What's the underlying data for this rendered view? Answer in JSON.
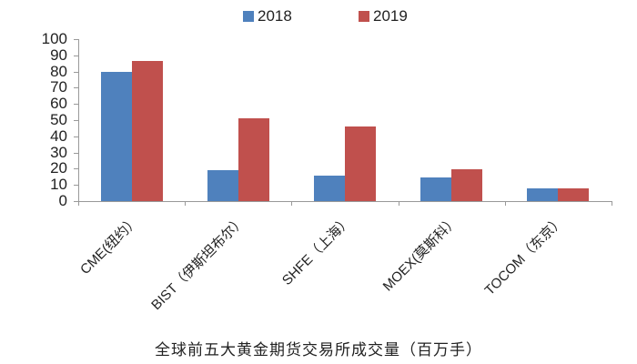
{
  "chart_data": {
    "type": "bar",
    "title": "全球前五大黄金期货交易所成交量（百万手）",
    "xlabel": "",
    "ylabel": "",
    "categories": [
      "CME(纽约）",
      "BIST（伊斯坦布尔）",
      "SHFE（上海）",
      "MOEX(莫斯科）",
      "TOCOM（东京）"
    ],
    "series": [
      {
        "name": "2018",
        "color": "#4F81BD",
        "values": [
          80,
          19,
          16,
          14.5,
          8
        ]
      },
      {
        "name": "2019",
        "color": "#C0504D",
        "values": [
          86.5,
          51,
          46,
          19.5,
          8
        ]
      }
    ],
    "ylim": [
      0,
      100
    ],
    "yticks": [
      0,
      10,
      20,
      30,
      40,
      50,
      60,
      70,
      80,
      90,
      100
    ],
    "grid": false,
    "legend_position": "top"
  },
  "legend": {
    "items": [
      {
        "label": "2018",
        "color": "#4F81BD"
      },
      {
        "label": "2019",
        "color": "#C0504D"
      }
    ]
  },
  "caption": "全球前五大黄金期货交易所成交量（百万手）"
}
